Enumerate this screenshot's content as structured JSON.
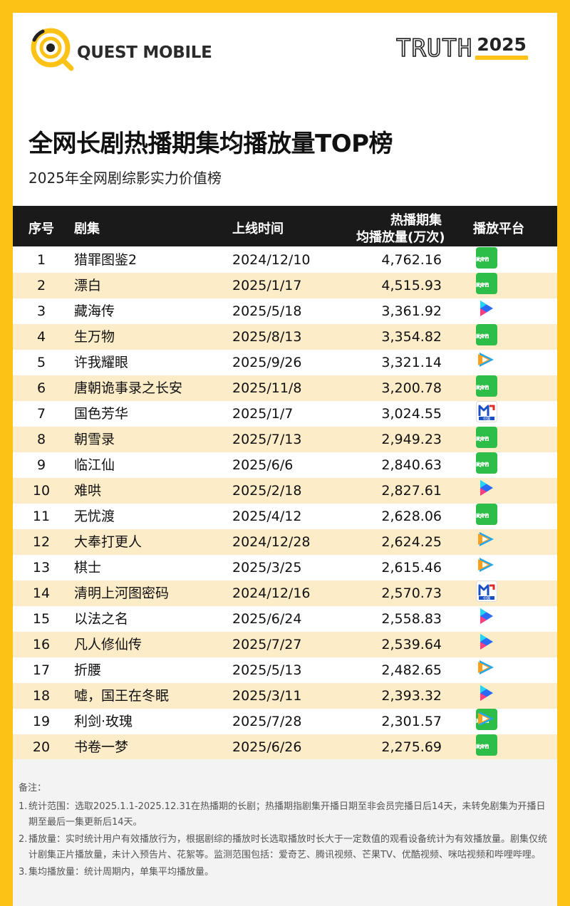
{
  "header": {
    "brand": "QUEST MOBILE",
    "truth_word": "TRUTH",
    "truth_year": "2025"
  },
  "title": "全网长剧热播期集均播放量TOP榜",
  "subtitle": "2025年全网剧综影实力价值榜",
  "table": {
    "col_rank": "序号",
    "col_name": "剧集",
    "col_date": "上线时间",
    "col_value_line1": "热播期集",
    "col_value_line2": "均播放量(万次)",
    "col_platform": "播放平台",
    "rows": [
      {
        "rank": "1",
        "name": "猎罪图鉴2",
        "date": "2024/12/10",
        "value": "4,762.16",
        "platforms": [
          "tencent-video",
          "iqiyi"
        ]
      },
      {
        "rank": "2",
        "name": "漂白",
        "date": "2025/1/17",
        "value": "4,515.93",
        "platforms": [
          "iqiyi"
        ]
      },
      {
        "rank": "3",
        "name": "藏海传",
        "date": "2025/5/18",
        "value": "3,361.92",
        "platforms": [
          "youku"
        ]
      },
      {
        "rank": "4",
        "name": "生万物",
        "date": "2025/8/13",
        "value": "3,354.82",
        "platforms": [
          "iqiyi"
        ]
      },
      {
        "rank": "5",
        "name": "许我耀眼",
        "date": "2025/9/26",
        "value": "3,321.14",
        "platforms": [
          "tencent-video"
        ]
      },
      {
        "rank": "6",
        "name": "唐朝诡事录之长安",
        "date": "2025/11/8",
        "value": "3,200.78",
        "platforms": [
          "iqiyi"
        ]
      },
      {
        "rank": "7",
        "name": "国色芳华",
        "date": "2025/1/7",
        "value": "3,024.55",
        "platforms": [
          "mango-tv",
          "cctv"
        ]
      },
      {
        "rank": "8",
        "name": "朝雪录",
        "date": "2025/7/13",
        "value": "2,949.23",
        "platforms": [
          "iqiyi"
        ]
      },
      {
        "rank": "9",
        "name": "临江仙",
        "date": "2025/6/6",
        "value": "2,840.63",
        "platforms": [
          "iqiyi"
        ]
      },
      {
        "rank": "10",
        "name": "难哄",
        "date": "2025/2/18",
        "value": "2,827.61",
        "platforms": [
          "youku"
        ]
      },
      {
        "rank": "11",
        "name": "无忧渡",
        "date": "2025/4/12",
        "value": "2,628.06",
        "platforms": [
          "iqiyi"
        ]
      },
      {
        "rank": "12",
        "name": "大奉打更人",
        "date": "2024/12/28",
        "value": "2,624.25",
        "platforms": [
          "tencent-video"
        ]
      },
      {
        "rank": "13",
        "name": "棋士",
        "date": "2025/3/25",
        "value": "2,615.46",
        "platforms": [
          "tencent-video"
        ]
      },
      {
        "rank": "14",
        "name": "清明上河图密码",
        "date": "2024/12/16",
        "value": "2,570.73",
        "platforms": [
          "youku",
          "cctv"
        ]
      },
      {
        "rank": "15",
        "name": "以法之名",
        "date": "2025/6/24",
        "value": "2,558.83",
        "platforms": [
          "youku"
        ]
      },
      {
        "rank": "16",
        "name": "凡人修仙传",
        "date": "2025/7/27",
        "value": "2,539.64",
        "platforms": [
          "youku"
        ]
      },
      {
        "rank": "17",
        "name": "折腰",
        "date": "2025/5/13",
        "value": "2,482.65",
        "platforms": [
          "tencent-video"
        ]
      },
      {
        "rank": "18",
        "name": "嘘，国王在冬眠",
        "date": "2025/3/11",
        "value": "2,393.32",
        "platforms": [
          "youku"
        ]
      },
      {
        "rank": "19",
        "name": "利剑·玫瑰",
        "date": "2025/7/28",
        "value": "2,301.57",
        "platforms": [
          "iqiyi",
          "tencent-video"
        ]
      },
      {
        "rank": "20",
        "name": "书卷一梦",
        "date": "2025/6/26",
        "value": "2,275.69",
        "platforms": [
          "iqiyi"
        ]
      }
    ]
  },
  "platform_labels": {
    "iqiyi_line1": "iQIYI",
    "iqiyi_line2": "爱奇艺",
    "cctv": "中国"
  },
  "notes": {
    "title": "备注：",
    "items": [
      {
        "num": "1.",
        "text": "统计范围：选取2025.1.1-2025.12.31在热播期的长剧；热播期指剧集开播日期至非会员完播日后14天，未转免剧集为开播日期至最后一集更新后14天。"
      },
      {
        "num": "2.",
        "text": "播放量：实时统计用户有效播放行为，根据剧综的播放时长选取播放时长大于一定数值的观看设备统计为有效播放量。剧集仅统计剧集正片播放量，未计入预告片、花絮等。监测范围包括：爱奇艺、腾讯视频、芒果TV、优酷视频、咪咕视频和哔哩哔哩。"
      },
      {
        "num": "3.",
        "text": "集均播放量：统计周期内，单集平均播放量。"
      }
    ]
  },
  "colors": {
    "frame": "#FDC216",
    "header_bg": "#1a1a1a",
    "row_alt": "#FDECC8",
    "notes_bg": "#F3F3F3"
  }
}
